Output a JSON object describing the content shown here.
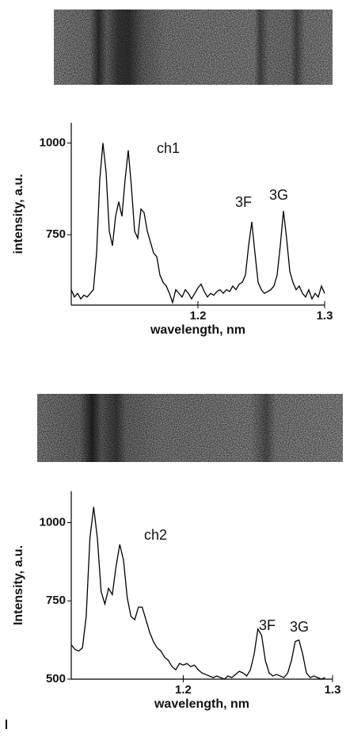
{
  "chart_data": [
    {
      "type": "line",
      "color": "#000000",
      "x": [
        1.1,
        1.1025,
        1.105,
        1.1075,
        1.11,
        1.1125,
        1.115,
        1.1175,
        1.12,
        1.1225,
        1.125,
        1.1275,
        1.13,
        1.1325,
        1.135,
        1.1375,
        1.14,
        1.1425,
        1.145,
        1.1475,
        1.15,
        1.1525,
        1.155,
        1.1575,
        1.16,
        1.1625,
        1.165,
        1.1675,
        1.17,
        1.1725,
        1.175,
        1.1775,
        1.18,
        1.1825,
        1.185,
        1.1875,
        1.19,
        1.1925,
        1.195,
        1.1975,
        1.2,
        1.2025,
        1.205,
        1.2075,
        1.21,
        1.2125,
        1.215,
        1.2175,
        1.22,
        1.2225,
        1.225,
        1.2275,
        1.23,
        1.2325,
        1.235,
        1.2375,
        1.24,
        1.2425,
        1.245,
        1.2475,
        1.25,
        1.2525,
        1.255,
        1.2575,
        1.26,
        1.2625,
        1.265,
        1.2675,
        1.27,
        1.2725,
        1.275,
        1.2775,
        1.28,
        1.2825,
        1.285,
        1.2875,
        1.29,
        1.2925,
        1.295,
        1.2975,
        1.3
      ],
      "values": [
        600,
        580,
        590,
        575,
        585,
        580,
        590,
        600,
        700,
        900,
        1000,
        920,
        760,
        720,
        800,
        840,
        800,
        900,
        980,
        880,
        760,
        740,
        820,
        810,
        760,
        730,
        700,
        690,
        640,
        620,
        610,
        590,
        565,
        600,
        590,
        580,
        600,
        590,
        575,
        590,
        605,
        615,
        595,
        580,
        590,
        585,
        595,
        600,
        590,
        600,
        595,
        610,
        600,
        615,
        620,
        640,
        720,
        785,
        700,
        620,
        600,
        590,
        595,
        600,
        610,
        640,
        720,
        815,
        740,
        650,
        620,
        600,
        610,
        590,
        580,
        600,
        575,
        590,
        580,
        610,
        590
      ],
      "xlim": [
        1.1,
        1.3
      ],
      "ylim": [
        558,
        1055
      ],
      "xticks": [
        1.2,
        1.3
      ],
      "yticks": [
        750,
        1000
      ],
      "xlabel": "wavelength, nm",
      "ylabel": "intensity, a.u.",
      "annotations": [
        "ch1",
        "3F",
        "3G"
      ]
    },
    {
      "type": "line",
      "color": "#000000",
      "x": [
        1.125,
        1.1275,
        1.13,
        1.1325,
        1.135,
        1.1375,
        1.14,
        1.1425,
        1.145,
        1.1475,
        1.15,
        1.1525,
        1.155,
        1.1575,
        1.16,
        1.1625,
        1.165,
        1.1675,
        1.17,
        1.1725,
        1.175,
        1.1775,
        1.18,
        1.1825,
        1.185,
        1.1875,
        1.19,
        1.1925,
        1.195,
        1.1975,
        1.2,
        1.2025,
        1.205,
        1.2075,
        1.21,
        1.2125,
        1.215,
        1.2175,
        1.22,
        1.2225,
        1.225,
        1.2275,
        1.23,
        1.2325,
        1.235,
        1.2375,
        1.24,
        1.2425,
        1.245,
        1.2475,
        1.25,
        1.2525,
        1.255,
        1.2575,
        1.26,
        1.2625,
        1.265,
        1.2675,
        1.27,
        1.2725,
        1.275,
        1.2775,
        1.28,
        1.2825,
        1.285,
        1.2875,
        1.29,
        1.2925,
        1.295
      ],
      "values": [
        610,
        595,
        590,
        600,
        700,
        950,
        1050,
        950,
        780,
        740,
        790,
        770,
        860,
        930,
        880,
        760,
        700,
        690,
        730,
        730,
        690,
        650,
        620,
        600,
        590,
        570,
        560,
        540,
        530,
        550,
        545,
        550,
        540,
        545,
        530,
        520,
        515,
        510,
        505,
        510,
        505,
        500,
        510,
        505,
        515,
        525,
        520,
        510,
        530,
        580,
        660,
        640,
        560,
        520,
        510,
        515,
        510,
        505,
        520,
        560,
        620,
        625,
        580,
        520,
        505,
        510,
        505,
        500,
        505
      ],
      "xlim": [
        1.125,
        1.3
      ],
      "ylim": [
        500,
        1100
      ],
      "xticks": [
        1.2,
        1.3
      ],
      "yticks": [
        500,
        750,
        1000
      ],
      "xlabel": "wavelength, nm",
      "ylabel": "Intensity, a.u.",
      "annotations": [
        "ch2",
        "3F",
        "3G"
      ]
    }
  ]
}
